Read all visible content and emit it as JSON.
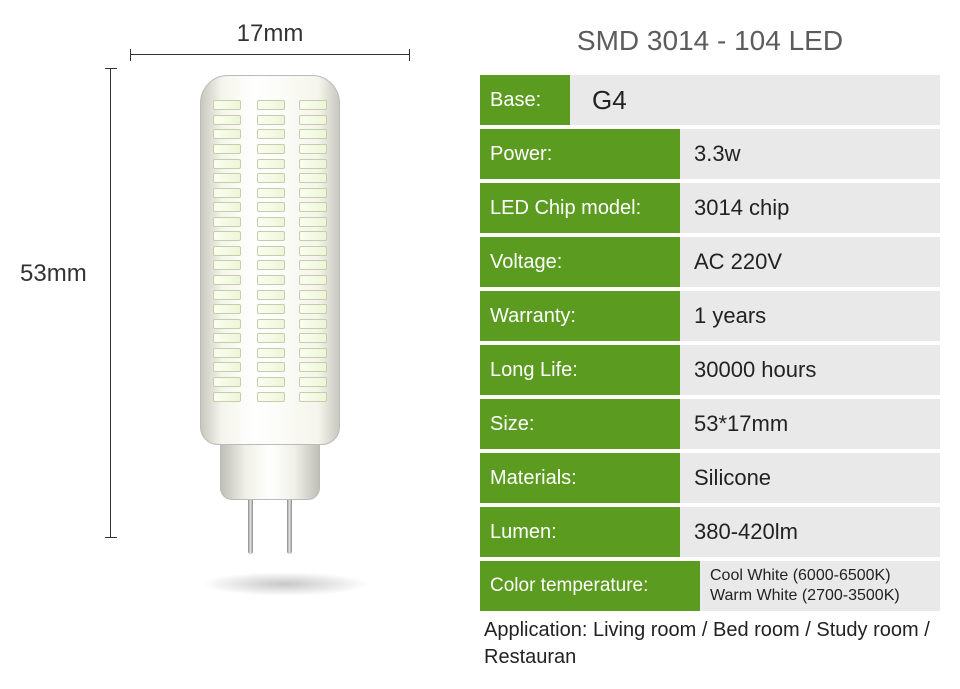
{
  "dimensions": {
    "width_label": "17mm",
    "height_label": "53mm"
  },
  "title": "SMD 3014 - 104 LED",
  "specs": {
    "base": {
      "label": "Base:",
      "value": "G4"
    },
    "power": {
      "label": "Power:",
      "value": "3.3w"
    },
    "chip": {
      "label": "LED Chip model:",
      "value": "3014 chip"
    },
    "voltage": {
      "label": "Voltage:",
      "value": "AC 220V"
    },
    "warranty": {
      "label": "Warranty:",
      "value": "1 years"
    },
    "longlife": {
      "label": "Long Life:",
      "value": "30000 hours"
    },
    "size": {
      "label": "Size:",
      "value": "53*17mm"
    },
    "materials": {
      "label": "Materials:",
      "value": "Silicone"
    },
    "lumen": {
      "label": "Lumen:",
      "value": "380-420lm"
    },
    "colortemp": {
      "label": "Color temperature:",
      "value1": "Cool White (6000-6500K)",
      "value2": "Warm White (2700-3500K)"
    }
  },
  "application": "Application: Living room / Bed room  / Study room / Restauran",
  "style": {
    "label_bg": "#5b9b1f",
    "value_bg": "#e9e9e9",
    "title_color": "#5c5c5c",
    "led_count_per_col": 21
  }
}
